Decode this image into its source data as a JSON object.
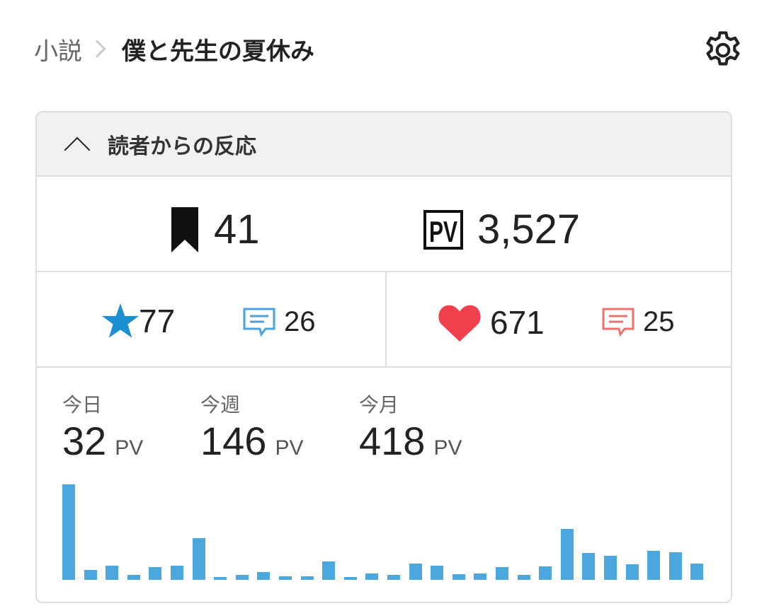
{
  "breadcrumb": {
    "parent": "小説",
    "title": "僕と先生の夏休み"
  },
  "section": {
    "title": "読者からの反応"
  },
  "stats": {
    "bookmarks": "41",
    "pv": "3,527",
    "stars": "77",
    "star_comments": "26",
    "hearts": "671",
    "heart_comments": "25"
  },
  "icons": {
    "bookmark": "bookmark-icon",
    "pv": "pv-icon",
    "star": "star-icon",
    "comment": "comment-icon",
    "heart": "heart-icon",
    "settings": "gear-icon"
  },
  "periods": [
    {
      "label": "今日",
      "value": "32",
      "unit": "PV"
    },
    {
      "label": "今週",
      "value": "146",
      "unit": "PV"
    },
    {
      "label": "今月",
      "value": "418",
      "unit": "PV"
    }
  ],
  "colors": {
    "star": "#1a8fd1",
    "heart": "#f0404e",
    "star_comment": "#4aa3e0",
    "heart_comment": "#f07070",
    "bar": "#4aa8df",
    "header_bg": "#f2f1f0"
  },
  "chart_data": {
    "type": "bar",
    "values": [
      135,
      14,
      20,
      7,
      18,
      20,
      59,
      4,
      7,
      11,
      5,
      5,
      26,
      4,
      9,
      7,
      23,
      20,
      8,
      9,
      18,
      7,
      19,
      72,
      38,
      34,
      22,
      41,
      39,
      23
    ]
  }
}
